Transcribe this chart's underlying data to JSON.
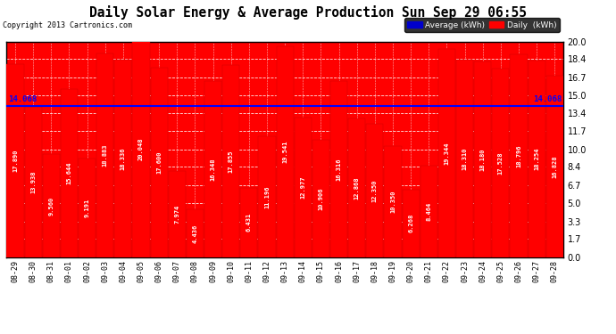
{
  "title": "Daily Solar Energy & Average Production Sun Sep 29 06:55",
  "copyright": "Copyright 2013 Cartronics.com",
  "average_value": 14.068,
  "average_label": "14.068",
  "categories": [
    "08-29",
    "08-30",
    "08-31",
    "09-01",
    "09-02",
    "09-03",
    "09-04",
    "09-05",
    "09-06",
    "09-07",
    "09-08",
    "09-09",
    "09-10",
    "09-11",
    "09-12",
    "09-13",
    "09-14",
    "09-15",
    "09-16",
    "09-17",
    "09-18",
    "09-19",
    "09-20",
    "09-21",
    "09-22",
    "09-23",
    "09-24",
    "09-25",
    "09-26",
    "09-27",
    "09-28"
  ],
  "values": [
    17.89,
    13.938,
    9.56,
    15.644,
    9.191,
    18.883,
    18.336,
    20.048,
    17.6,
    7.974,
    4.436,
    16.348,
    17.855,
    6.431,
    11.196,
    19.541,
    12.977,
    10.906,
    16.316,
    12.868,
    12.35,
    10.35,
    6.268,
    8.464,
    19.344,
    18.31,
    18.18,
    17.528,
    18.796,
    18.254,
    16.828
  ],
  "bar_color": "#ff0000",
  "bar_edge_color": "#cc0000",
  "avg_line_color": "#0000ff",
  "plot_bg_color": "#ff0000",
  "grid_color": "#ffffff",
  "yticks": [
    0.0,
    1.7,
    3.3,
    5.0,
    6.7,
    8.4,
    10.0,
    11.7,
    13.4,
    15.0,
    16.7,
    18.4,
    20.0
  ],
  "ylim": [
    0,
    20.0
  ],
  "legend_avg_color": "#0000cc",
  "legend_daily_color": "#ff0000",
  "fig_bg_color": "#ffffff",
  "border_color": "#000000",
  "value_label_color": "#ffffff",
  "value_label_fontsize": 5.0,
  "avg_label_fontsize": 6.5,
  "title_fontsize": 10.5,
  "copyright_fontsize": 6.0,
  "xtick_fontsize": 6.0,
  "ytick_fontsize": 7.0
}
